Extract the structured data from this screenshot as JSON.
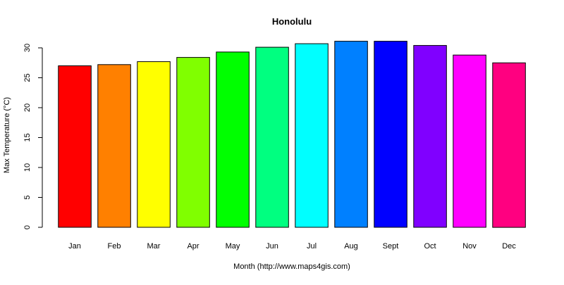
{
  "chart_data": {
    "type": "bar",
    "title": "Honolulu",
    "xlabel": "Month (http://www.maps4gis.com)",
    "ylabel": "Max Temperature (°C)",
    "categories": [
      "Jan",
      "Feb",
      "Mar",
      "Apr",
      "May",
      "Jun",
      "Jul",
      "Aug",
      "Sept",
      "Oct",
      "Nov",
      "Dec"
    ],
    "values": [
      27.0,
      27.2,
      27.7,
      28.4,
      29.3,
      30.1,
      30.7,
      31.1,
      31.1,
      30.4,
      28.8,
      27.5
    ],
    "colors": [
      "#FF0000",
      "#FF8000",
      "#FFFF00",
      "#80FF00",
      "#00FF00",
      "#00FF80",
      "#00FFFF",
      "#0080FF",
      "#0000FF",
      "#8000FF",
      "#FF00FF",
      "#FF0080"
    ],
    "ylim": [
      0,
      30
    ],
    "yticks": [
      0,
      5,
      10,
      15,
      20,
      25,
      30
    ],
    "grid": false,
    "legend": "none"
  }
}
